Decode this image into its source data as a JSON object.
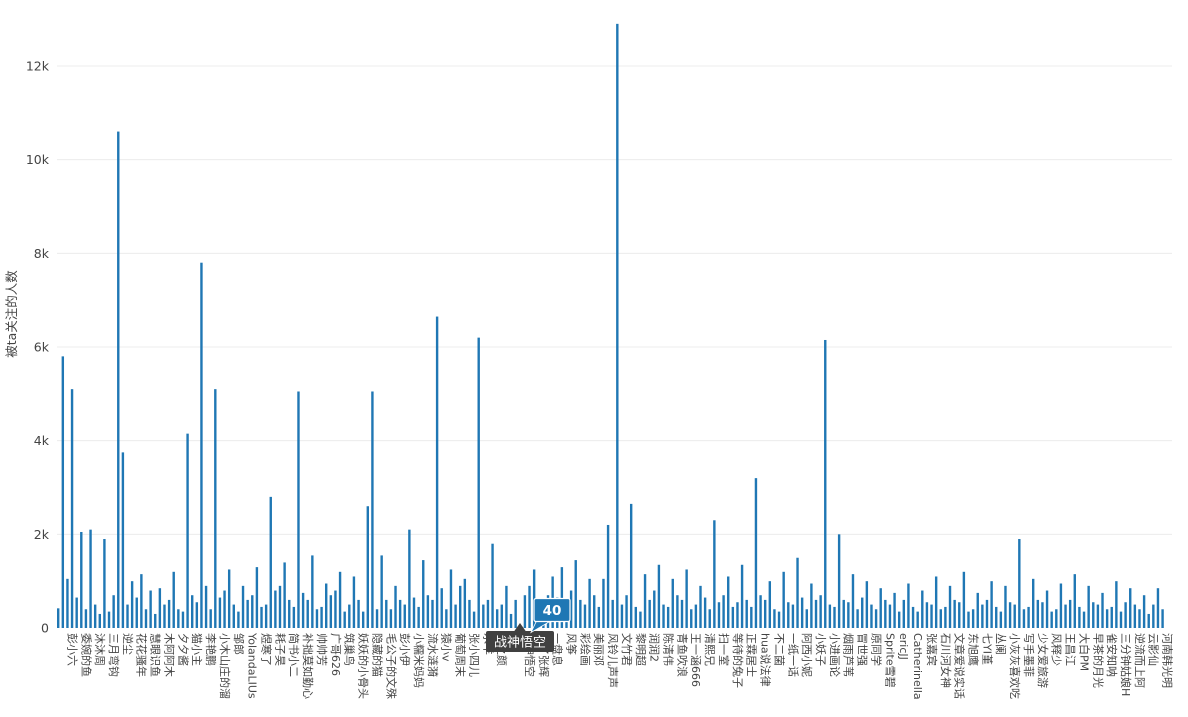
{
  "chart_data": {
    "type": "bar",
    "title": "",
    "xlabel": "",
    "ylabel": "被ta关注的人数",
    "ylim": [
      0,
      13000
    ],
    "grid": true,
    "legend_position": "none",
    "bar_color": "#1f77b4",
    "grid_color": "#ececec",
    "text_color": "#444444",
    "ytick_labels": [
      "0",
      "2k",
      "4k",
      "6k",
      "8k",
      "10k",
      "12k"
    ],
    "ytick_values": [
      0,
      2000,
      4000,
      6000,
      8000,
      10000,
      12000
    ],
    "bars_per_category": 3,
    "categories": [
      "彭小六",
      "委婉的鱼",
      "沐沐周",
      "三月弯钩",
      "逆尘",
      "花花骚年",
      "慧眼识鱼",
      "木阿阿木",
      "夕夕酱",
      "猫小主",
      "李艳鹏",
      "小木山庄的溜",
      "邹郎",
      "YolandaLIUs",
      "煜寒了",
      "耗子昊",
      "简书小二",
      "补拙莫如勤心",
      "帅帅芳",
      "广哥626",
      "筑巢鸟",
      "妖妖的小骨头",
      "隐藏的猫",
      "毛公子的文殊",
      "彭小伊",
      "小糯米妈妈",
      "流水涟漪",
      "猿小v",
      "葡萄周末",
      "张小四儿",
      "水羊",
      "花之颜",
      "",
      "战神悟空",
      "批了张辉",
      "一盘息",
      "风筝",
      "彩绘画",
      "美丽邓",
      "风铃儿声声",
      "文竹君",
      "黎明超",
      "润润2",
      "陈清伟",
      "青鱼吹浪",
      "王一涵666",
      "清熙兄",
      "扫一室",
      "等待的兔子",
      "正霖居士",
      "hua说法律",
      "不二菌",
      "一纸一话",
      "阿西小妮",
      "小妖子",
      "小进画论",
      "烟雨芦苇",
      "冒世强",
      "原同学",
      "Sprite雪碧",
      "ericJJ",
      "Catherinella",
      "张嘉宾",
      "石川河女神",
      "文章爱说实话",
      "东旭鹰",
      "七YI堇",
      "丛阑",
      "小灰灰喜欢吃",
      "写手墨菲",
      "少女爱旅游",
      "风释少",
      "王昌江",
      "大白PM",
      "早茶的月光",
      "雀安知呐",
      "三分钟姑娘H",
      "逆流而上阿",
      "云影仙",
      "河南韩光明"
    ],
    "values": [
      [
        420,
        5800,
        1050
      ],
      [
        5100,
        650,
        2050
      ],
      [
        400,
        2100,
        500
      ],
      [
        300,
        1900,
        350
      ],
      [
        700,
        10600,
        3750
      ],
      [
        500,
        1000,
        650
      ],
      [
        1150,
        400,
        800
      ],
      [
        300,
        850,
        500
      ],
      [
        600,
        1200,
        400
      ],
      [
        350,
        4150,
        700
      ],
      [
        550,
        7800,
        900
      ],
      [
        400,
        5100,
        650
      ],
      [
        800,
        1250,
        500
      ],
      [
        350,
        900,
        600
      ],
      [
        700,
        1300,
        450
      ],
      [
        500,
        2800,
        800
      ],
      [
        900,
        1400,
        600
      ],
      [
        450,
        5050,
        750
      ],
      [
        600,
        1550,
        400
      ],
      [
        450,
        950,
        700
      ],
      [
        800,
        1200,
        350
      ],
      [
        500,
        1100,
        600
      ],
      [
        350,
        2600,
        5050
      ],
      [
        400,
        1550,
        600
      ],
      [
        400,
        900,
        600
      ],
      [
        500,
        2100,
        650
      ],
      [
        450,
        1450,
        700
      ],
      [
        600,
        6650,
        850
      ],
      [
        400,
        1250,
        500
      ],
      [
        900,
        1050,
        600
      ],
      [
        350,
        6200,
        500
      ],
      [
        600,
        1800,
        400
      ],
      [
        500,
        900,
        300
      ],
      [
        600,
        40,
        700
      ],
      [
        900,
        1250,
        500
      ],
      [
        400,
        700,
        1100
      ],
      [
        650,
        1300,
        450
      ],
      [
        800,
        1450,
        600
      ],
      [
        500,
        1050,
        700
      ],
      [
        450,
        1050,
        2200
      ],
      [
        600,
        12900,
        500
      ],
      [
        700,
        2650,
        450
      ],
      [
        350,
        1150,
        600
      ],
      [
        800,
        1350,
        500
      ],
      [
        450,
        1050,
        700
      ],
      [
        600,
        1250,
        400
      ],
      [
        500,
        900,
        650
      ],
      [
        400,
        2300,
        550
      ],
      [
        700,
        1100,
        450
      ],
      [
        550,
        1350,
        600
      ],
      [
        450,
        3200,
        700
      ],
      [
        600,
        1000,
        400
      ],
      [
        350,
        1200,
        550
      ],
      [
        500,
        1500,
        650
      ],
      [
        400,
        950,
        600
      ],
      [
        700,
        6150,
        500
      ],
      [
        450,
        2000,
        600
      ],
      [
        550,
        1150,
        400
      ],
      [
        650,
        1000,
        500
      ],
      [
        400,
        850,
        600
      ],
      [
        500,
        750,
        350
      ],
      [
        600,
        950,
        450
      ],
      [
        350,
        800,
        550
      ],
      [
        500,
        1100,
        400
      ],
      [
        450,
        900,
        600
      ],
      [
        550,
        1200,
        350
      ],
      [
        400,
        750,
        500
      ],
      [
        600,
        1000,
        450
      ],
      [
        350,
        900,
        550
      ],
      [
        500,
        1900,
        400
      ],
      [
        450,
        1050,
        600
      ],
      [
        550,
        800,
        350
      ],
      [
        400,
        950,
        500
      ],
      [
        600,
        1150,
        450
      ],
      [
        350,
        900,
        550
      ],
      [
        500,
        750,
        400
      ],
      [
        450,
        1000,
        350
      ],
      [
        550,
        850,
        500
      ],
      [
        400,
        700,
        300
      ],
      [
        500,
        850,
        400
      ]
    ]
  },
  "tooltip": {
    "value_label": "40",
    "value": 40,
    "category_label": "战神悟空",
    "category_index": 33,
    "value_box_color": "#1f77b4",
    "value_text_color": "#ffffff",
    "axis_label_bg": "#404040",
    "axis_label_text_color": "#ffffff"
  }
}
